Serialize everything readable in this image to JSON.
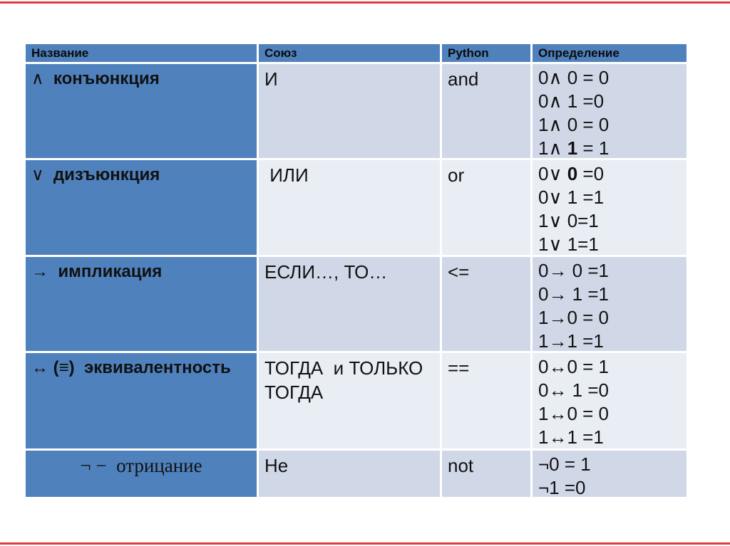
{
  "colors": {
    "header_blue": "#4f81bd",
    "band_dark": "#d0d8e8",
    "band_light": "#e9edf4",
    "red_line": "#e0393e",
    "text": "#111111"
  },
  "table": {
    "headers": [
      "Название",
      "Союз",
      "Python",
      "Определение"
    ],
    "rows": [
      {
        "name": "∧  **конъюнкция**",
        "union": "И",
        "python": "and",
        "definition": [
          "0∧ 0 = 0",
          "0∧ 1 =0",
          "1∧ 0 = 0",
          "1∧ **1** = 1"
        ]
      },
      {
        "name": "∨  **дизъюнкция**",
        "union": " ИЛИ",
        "python": "or",
        "definition": [
          "0∨ **0** =0",
          "0∨ 1 =1",
          "1∨ 0=1",
          "1∨ 1=1"
        ]
      },
      {
        "name": "→  **импликация**",
        "union": "ЕСЛИ…, ТО…",
        "python": "<=",
        "definition": [
          "0→ 0 =1",
          "0→ 1 =1",
          "1→0 = 0",
          "1→1 =1"
        ]
      },
      {
        "name": "↔ **(≡)  эквивалентность**",
        "union": "ТОГДА  и ТОЛЬКО ТОГДА",
        "python": "==",
        "definition": [
          "0↔0 = 1",
          "0↔ 1 =0",
          "1↔0 = 0",
          "1↔1 =1"
        ]
      },
      {
        "name": "¬ −  отрицание",
        "name_style": "serif-centered",
        "union": "Не",
        "python": "not",
        "definition": [
          "¬0 = 1",
          "¬1 =0"
        ]
      }
    ]
  }
}
